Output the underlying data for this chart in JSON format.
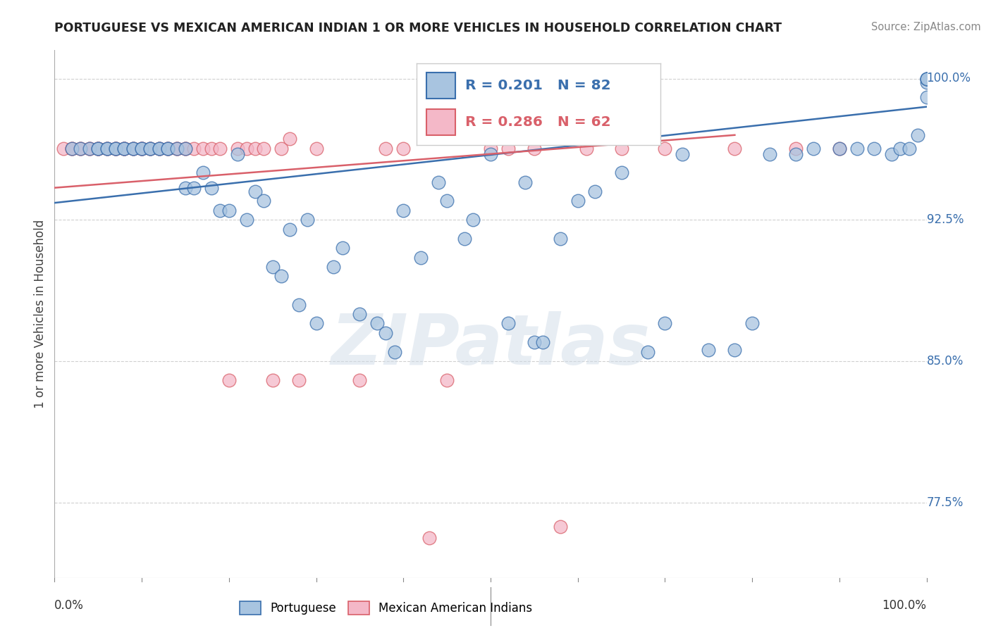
{
  "title": "PORTUGUESE VS MEXICAN AMERICAN INDIAN 1 OR MORE VEHICLES IN HOUSEHOLD CORRELATION CHART",
  "source": "Source: ZipAtlas.com",
  "ylabel": "1 or more Vehicles in Household",
  "ytick_labels": [
    "100.0%",
    "92.5%",
    "85.0%",
    "77.5%"
  ],
  "ytick_values": [
    1.0,
    0.925,
    0.85,
    0.775
  ],
  "xlim": [
    0.0,
    1.0
  ],
  "ylim": [
    0.735,
    1.015
  ],
  "blue_R": 0.201,
  "blue_N": 82,
  "pink_R": 0.286,
  "pink_N": 62,
  "blue_color": "#a8c4e0",
  "pink_color": "#f4b8c8",
  "blue_line_color": "#3a6fad",
  "pink_line_color": "#d9606a",
  "legend_blue_label": "Portuguese",
  "legend_pink_label": "Mexican American Indians",
  "watermark": "ZIPatlas",
  "blue_x": [
    0.02,
    0.03,
    0.04,
    0.05,
    0.05,
    0.06,
    0.06,
    0.07,
    0.07,
    0.08,
    0.08,
    0.09,
    0.09,
    0.1,
    0.1,
    0.11,
    0.11,
    0.12,
    0.12,
    0.13,
    0.13,
    0.14,
    0.15,
    0.15,
    0.16,
    0.17,
    0.18,
    0.19,
    0.2,
    0.21,
    0.22,
    0.23,
    0.24,
    0.25,
    0.26,
    0.27,
    0.28,
    0.29,
    0.3,
    0.32,
    0.33,
    0.35,
    0.37,
    0.38,
    0.39,
    0.4,
    0.42,
    0.44,
    0.45,
    0.47,
    0.48,
    0.5,
    0.52,
    0.54,
    0.55,
    0.56,
    0.58,
    0.6,
    0.62,
    0.65,
    0.68,
    0.7,
    0.72,
    0.75,
    0.78,
    0.8,
    0.82,
    0.85,
    0.87,
    0.9,
    0.92,
    0.94,
    0.96,
    0.97,
    0.98,
    0.99,
    1.0,
    1.0,
    1.0,
    1.0,
    1.0,
    1.0
  ],
  "blue_y": [
    0.963,
    0.963,
    0.963,
    0.963,
    0.963,
    0.963,
    0.963,
    0.963,
    0.963,
    0.963,
    0.963,
    0.963,
    0.963,
    0.963,
    0.963,
    0.963,
    0.963,
    0.963,
    0.963,
    0.963,
    0.963,
    0.963,
    0.963,
    0.942,
    0.942,
    0.95,
    0.942,
    0.93,
    0.93,
    0.96,
    0.925,
    0.94,
    0.935,
    0.9,
    0.895,
    0.92,
    0.88,
    0.925,
    0.87,
    0.9,
    0.91,
    0.875,
    0.87,
    0.865,
    0.855,
    0.93,
    0.905,
    0.945,
    0.935,
    0.915,
    0.925,
    0.96,
    0.87,
    0.945,
    0.86,
    0.86,
    0.915,
    0.935,
    0.94,
    0.95,
    0.855,
    0.87,
    0.96,
    0.856,
    0.856,
    0.87,
    0.96,
    0.96,
    0.963,
    0.963,
    0.963,
    0.963,
    0.96,
    0.963,
    0.963,
    0.97,
    0.99,
    0.998,
    1.0,
    1.0,
    1.0,
    1.0
  ],
  "pink_x": [
    0.01,
    0.02,
    0.02,
    0.03,
    0.03,
    0.04,
    0.04,
    0.05,
    0.05,
    0.05,
    0.06,
    0.06,
    0.07,
    0.07,
    0.07,
    0.08,
    0.08,
    0.08,
    0.09,
    0.09,
    0.1,
    0.1,
    0.1,
    0.11,
    0.11,
    0.12,
    0.12,
    0.13,
    0.13,
    0.14,
    0.14,
    0.15,
    0.15,
    0.16,
    0.17,
    0.18,
    0.19,
    0.2,
    0.21,
    0.22,
    0.23,
    0.24,
    0.25,
    0.26,
    0.27,
    0.28,
    0.3,
    0.35,
    0.38,
    0.4,
    0.43,
    0.45,
    0.5,
    0.52,
    0.55,
    0.58,
    0.61,
    0.65,
    0.7,
    0.78,
    0.85,
    0.9
  ],
  "pink_y": [
    0.963,
    0.963,
    0.963,
    0.963,
    0.963,
    0.963,
    0.963,
    0.963,
    0.963,
    0.963,
    0.963,
    0.963,
    0.963,
    0.963,
    0.963,
    0.963,
    0.963,
    0.963,
    0.963,
    0.963,
    0.963,
    0.963,
    0.963,
    0.963,
    0.963,
    0.963,
    0.963,
    0.963,
    0.963,
    0.963,
    0.963,
    0.963,
    0.963,
    0.963,
    0.963,
    0.963,
    0.963,
    0.84,
    0.963,
    0.963,
    0.963,
    0.963,
    0.84,
    0.963,
    0.968,
    0.84,
    0.963,
    0.84,
    0.963,
    0.963,
    0.756,
    0.84,
    0.963,
    0.963,
    0.963,
    0.762,
    0.963,
    0.963,
    0.963,
    0.963,
    0.963,
    0.963
  ],
  "blue_line_x0": 0.0,
  "blue_line_x1": 1.0,
  "blue_line_y0": 0.934,
  "blue_line_y1": 0.985,
  "pink_line_x0": 0.0,
  "pink_line_x1": 0.78,
  "pink_line_y0": 0.942,
  "pink_line_y1": 0.97
}
